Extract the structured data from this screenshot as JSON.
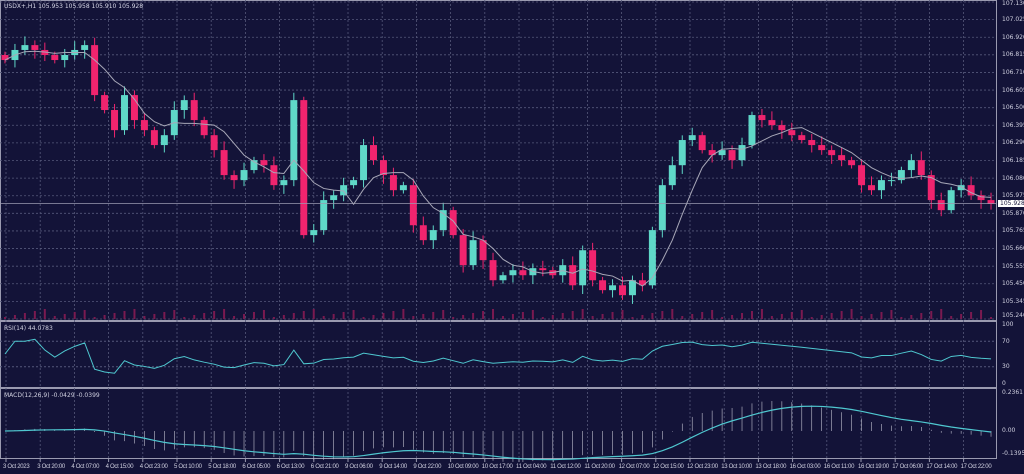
{
  "header": {
    "symbol_label": "USDX+,H1 105.953 105.958 105.910 105.928",
    "title_icon": "triangle-down-icon"
  },
  "colors": {
    "background": "#131338",
    "grid": "#55587a",
    "bull": "#5fd8c8",
    "bear": "#f0246e",
    "ma": "#a8a8b8",
    "indicator": "#4fc8d0",
    "axis_text": "#d0d0e0"
  },
  "price_axis": {
    "ticks": [
      "107.130",
      "107.025",
      "106.920",
      "106.815",
      "106.710",
      "106.605",
      "106.500",
      "106.395",
      "106.290",
      "106.185",
      "106.080",
      "105.975",
      "105.870",
      "105.765",
      "105.660",
      "105.555",
      "105.450",
      "105.345",
      "105.240"
    ],
    "current_price": "105.928"
  },
  "rsi": {
    "label": "RSI(14) 44.0783",
    "ticks": [
      "100",
      "70",
      "30",
      "0"
    ]
  },
  "macd": {
    "label": "MACD(12,26,9) -0.0429 -0.0399",
    "ticks": [
      "0.2361",
      "0.00",
      "-0.1395"
    ]
  },
  "time_axis": {
    "ticks": [
      "3 Oct 2023",
      "3 Oct 20:00",
      "4 Oct 07:00",
      "4 Oct 15:00",
      "4 Oct 23:00",
      "5 Oct 10:00",
      "5 Oct 18:00",
      "6 Oct 05:00",
      "6 Oct 13:00",
      "6 Oct 21:00",
      "9 Oct 06:00",
      "9 Oct 14:00",
      "9 Oct 22:00",
      "10 Oct 09:00",
      "10 Oct 17:00",
      "11 Oct 04:00",
      "11 Oct 12:00",
      "11 Oct 20:00",
      "12 Oct 07:00",
      "12 Oct 15:00",
      "12 Oct 23:00",
      "13 Oct 10:00",
      "13 Oct 18:00",
      "16 Oct 03:00",
      "16 Oct 11:00",
      "16 Oct 19:00",
      "17 Oct 06:00",
      "17 Oct 14:00",
      "17 Oct 22:00"
    ]
  },
  "chart_data": {
    "type": "candlestick",
    "ylim": [
      105.24,
      107.13
    ],
    "closes": [
      106.784,
      106.844,
      106.873,
      106.844,
      106.814,
      106.784,
      106.814,
      106.844,
      106.873,
      106.575,
      106.486,
      106.366,
      106.575,
      106.426,
      106.366,
      106.277,
      106.336,
      106.486,
      106.545,
      106.426,
      106.336,
      106.247,
      106.098,
      106.068,
      106.128,
      106.187,
      106.157,
      106.038,
      106.068,
      106.545,
      105.74,
      105.77,
      105.949,
      105.978,
      106.038,
      106.068,
      106.277,
      106.187,
      106.098,
      106.008,
      106.038,
      105.799,
      105.71,
      105.77,
      105.889,
      105.74,
      105.561,
      105.71,
      105.591,
      105.471,
      105.501,
      105.531,
      105.501,
      105.543,
      105.531,
      105.501,
      105.561,
      105.441,
      105.65,
      105.471,
      105.412,
      105.441,
      105.382,
      105.471,
      105.441,
      105.77,
      106.038,
      106.157,
      106.307,
      106.336,
      106.247,
      106.217,
      106.247,
      106.187,
      106.277,
      106.456,
      106.426,
      106.396,
      106.366,
      106.336,
      106.307,
      106.277,
      106.247,
      106.217,
      106.187,
      106.157,
      106.038,
      106.008,
      106.068,
      106.068,
      106.128,
      106.187,
      106.098,
      105.949,
      105.889,
      106.008,
      106.038,
      105.978,
      105.949,
      105.928
    ]
  }
}
